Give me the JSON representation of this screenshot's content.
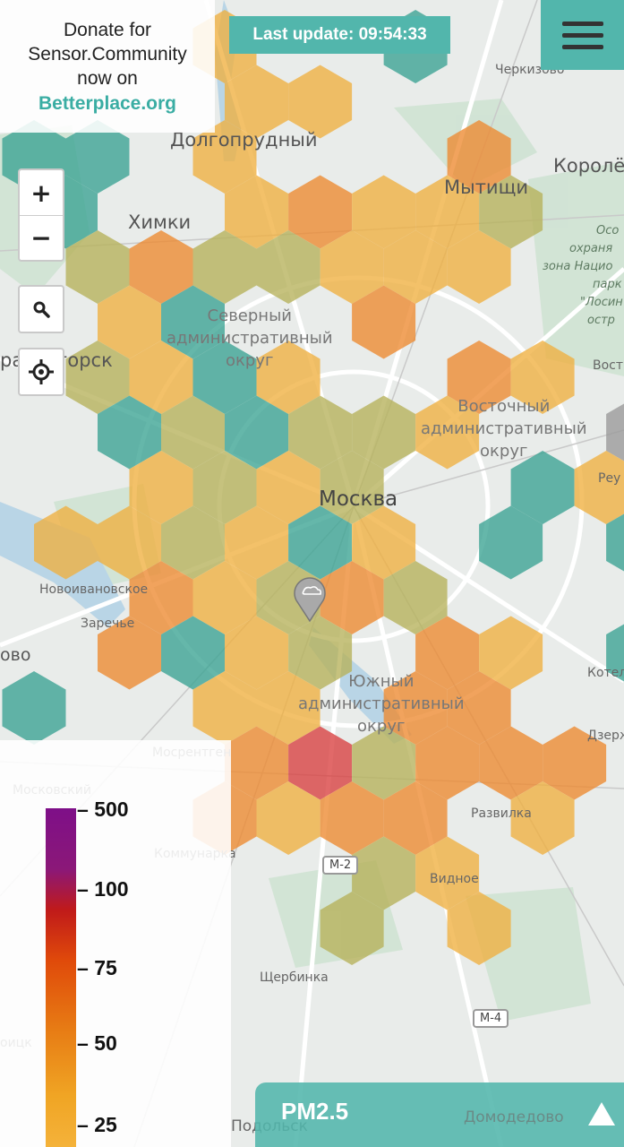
{
  "donate": {
    "line1": "Donate for",
    "line2": "Sensor.Community",
    "line3": "now on",
    "link": "Betterplace.org"
  },
  "last_update": "Last update: 09:54:33",
  "menu": {
    "icon": "hamburger-menu-icon"
  },
  "controls": {
    "zoom_in": "+",
    "zoom_out": "−",
    "search_icon": "search-icon",
    "locate_icon": "crosshair-locate-icon"
  },
  "legend": {
    "ticks": [
      "500",
      "100",
      "75",
      "50",
      "25"
    ]
  },
  "pm_selector": {
    "label": "PM2.5",
    "icon": "triangle-up-icon"
  },
  "map_labels": {
    "dolgoprudny": "Долгопрудный",
    "khimki": "Химки",
    "mytishchi": "Мытищи",
    "korolev": "Королё",
    "cherkizovo": "Черкизово",
    "severny_1": "Северный",
    "severny_2": "административный",
    "severny_3": "округ",
    "krasnogorsk": "расногорск",
    "vostochny_1": "Восточный",
    "vostochny_2": "административный",
    "vostochny_3": "округ",
    "moskva": "Москва",
    "novoivanovskoe": "Новоивановское",
    "zarechye": "Заречье",
    "vo": "ово",
    "yuzhny_1": "Южный",
    "yuzhny_2": "административный",
    "yuzhny_3": "округ",
    "mosrentgen": "Мосрентген",
    "moskovsky": "Московский",
    "kommunarka": "Коммунарка",
    "razvilka": "Развилка",
    "vidnoe": "Видное",
    "shcherbinka": "Щербинка",
    "podolsk": "Подольск",
    "domodedovo": "Домодедово",
    "kotel": "Котел",
    "dzerzh": "Дзерж",
    "vost": "Вост",
    "reu": "Реу",
    "oicsk": "оицк",
    "park_1": "Осо",
    "park_2": "охраня",
    "park_3": "зона Нацио",
    "park_4": "парк",
    "park_5": "\"Лосин",
    "park_6": "остр",
    "m2": "М-2",
    "m4": "М-4"
  },
  "colors": {
    "teal": "#52b6ac",
    "green_pm": "#3aa393",
    "olive_pm": "#b7b25a",
    "yellow_pm": "#f0b040",
    "orange_pm": "#ee8a30",
    "red_pm": "#d94040",
    "grey_pm": "#9a9a9a"
  }
}
